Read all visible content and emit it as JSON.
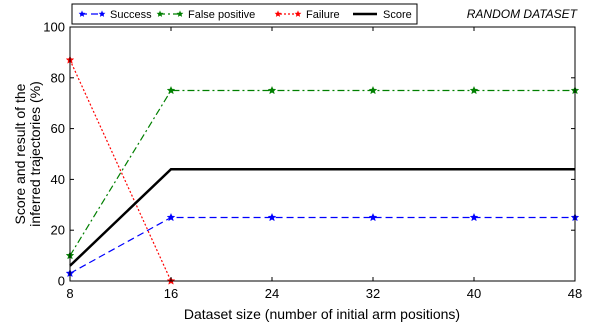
{
  "chart_data": {
    "type": "line",
    "title": "",
    "annotation": "RANDOM DATASET",
    "xlabel": "Dataset size (number of initial arm positions)",
    "ylabel_lines": [
      "Score and result of the",
      "inferred trajectories (%)"
    ],
    "x": [
      8,
      16,
      24,
      32,
      40,
      48
    ],
    "xlim": [
      8,
      48
    ],
    "ylim": [
      0,
      100
    ],
    "xticks": [
      8,
      16,
      24,
      32,
      40,
      48
    ],
    "yticks": [
      0,
      20,
      40,
      60,
      80,
      100
    ],
    "grid": false,
    "legend_position": "top",
    "series": [
      {
        "name": "Success",
        "values": [
          3,
          25,
          25,
          25,
          25,
          25
        ],
        "color": "#0000ff",
        "style": "dashed",
        "marker": "star"
      },
      {
        "name": "False positive",
        "values": [
          10,
          75,
          75,
          75,
          75,
          75
        ],
        "color": "#007f00",
        "style": "dashdot",
        "marker": "star"
      },
      {
        "name": "Failure",
        "values": [
          87,
          0,
          null,
          null,
          null,
          null
        ],
        "color": "#ff0000",
        "style": "dotted",
        "marker": "star"
      },
      {
        "name": "Score",
        "values": [
          6,
          44,
          44,
          44,
          44,
          44
        ],
        "color": "#000000",
        "style": "solid",
        "marker": "none"
      }
    ]
  }
}
